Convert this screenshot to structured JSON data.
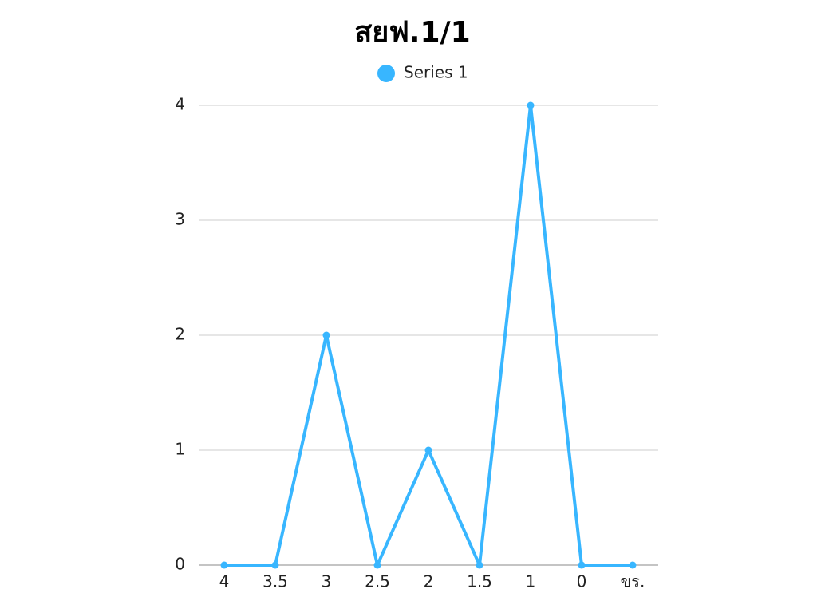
{
  "chart_data": {
    "type": "line",
    "title": "สยฟ.1/1",
    "categories": [
      "4",
      "3.5",
      "3",
      "2.5",
      "2",
      "1.5",
      "1",
      "0",
      "ขร."
    ],
    "series": [
      {
        "name": "Series 1",
        "color": "#38b6ff",
        "values": [
          0,
          0,
          2,
          0,
          1,
          0,
          4,
          0,
          0
        ]
      }
    ],
    "ylim": [
      0,
      4
    ],
    "yticks": [
      0,
      1,
      2,
      3,
      4
    ],
    "grid": true,
    "legend": "top"
  }
}
